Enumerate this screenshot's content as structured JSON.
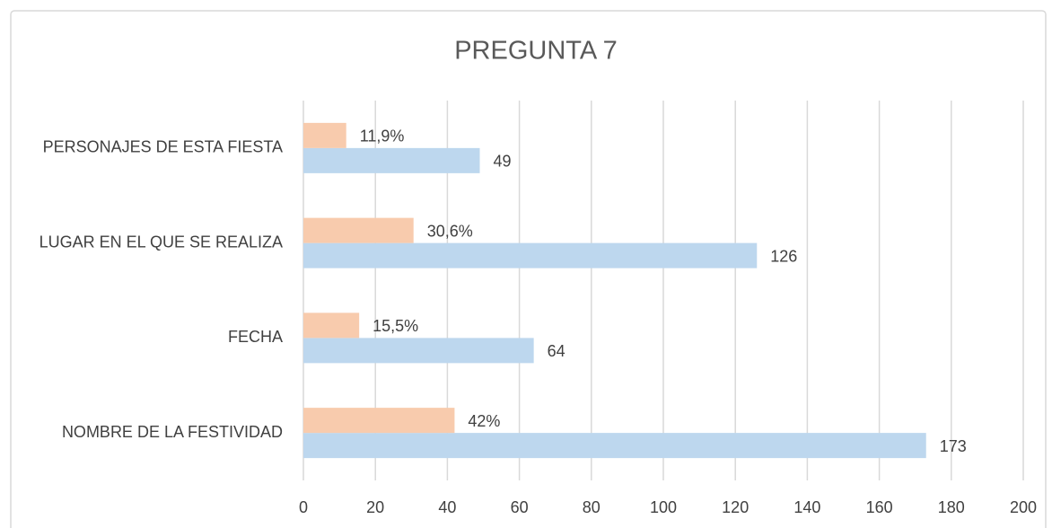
{
  "chart_data": {
    "type": "bar",
    "orientation": "horizontal",
    "title": "PREGUNTA 7",
    "categories": [
      "NOMBRE DE LA FESTIVIDAD",
      "FECHA",
      "LUGAR EN EL QUE SE REALIZA",
      "PERSONAJES DE ESTA FIESTA"
    ],
    "series": [
      {
        "color": "#bdd7ee",
        "values": [
          173,
          64,
          126,
          49
        ]
      },
      {
        "color": "#f8cbad",
        "values": [
          42,
          15.5,
          30.6,
          11.9
        ],
        "value_labels": [
          "42%",
          "15,5%",
          "30,6%",
          "11,9%"
        ]
      }
    ],
    "xlim": [
      0,
      200
    ],
    "xticks": [
      0,
      20,
      40,
      60,
      80,
      100,
      120,
      140,
      160,
      180,
      200
    ],
    "grid": true
  }
}
